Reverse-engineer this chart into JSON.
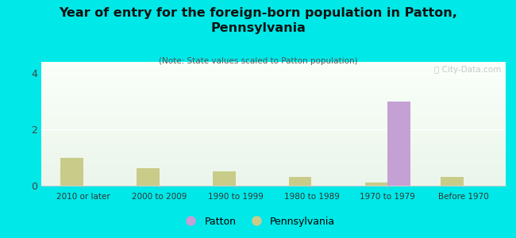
{
  "title": "Year of entry for the foreign-born population in Patton,\nPennsylvania",
  "subtitle": "(Note: State values scaled to Patton population)",
  "categories": [
    "2010 or later",
    "2000 to 2009",
    "1990 to 1999",
    "1980 to 1989",
    "1970 to 1979",
    "Before 1970"
  ],
  "patton_values": [
    0,
    0,
    0,
    0,
    3.0,
    0
  ],
  "pennsylvania_values": [
    1.0,
    0.62,
    0.5,
    0.32,
    0.12,
    0.32
  ],
  "patton_color": "#c4a0d4",
  "pennsylvania_color": "#c8cc88",
  "background_color": "#00e8e8",
  "ylim": [
    0,
    4.4
  ],
  "yticks": [
    0,
    2,
    4
  ],
  "bar_width": 0.3,
  "watermark": "ⓘ City-Data.com"
}
